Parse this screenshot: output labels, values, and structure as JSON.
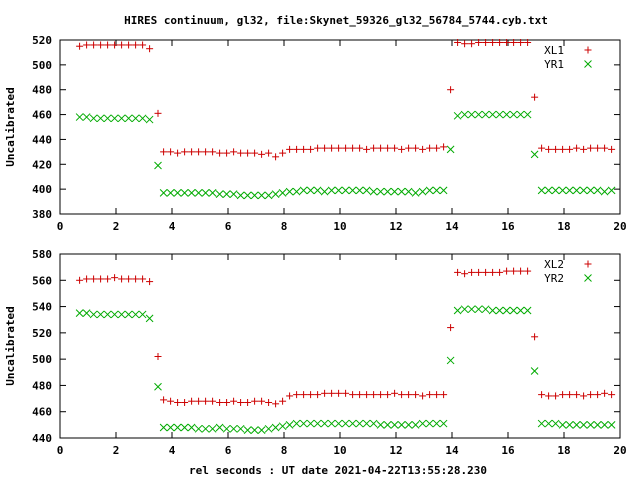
{
  "figure": {
    "title": "HIRES continuum, gl32, file:Skynet_59326_gl32_56784_5744.cyb.txt",
    "xlabel": "rel seconds : UT date 2021-04-22T13:55:28.230"
  },
  "chart_data": [
    {
      "type": "scatter",
      "title": "HIRES continuum, gl32, file:Skynet_59326_gl32_56784_5744.cyb.txt",
      "xlabel": "",
      "ylabel": "Uncalibrated",
      "xlim": [
        0,
        20
      ],
      "ylim": [
        380,
        520
      ],
      "xticks": [
        0,
        2,
        4,
        6,
        8,
        10,
        12,
        14,
        16,
        18,
        20
      ],
      "yticks": [
        380,
        400,
        420,
        440,
        460,
        480,
        500,
        520
      ],
      "grid": false,
      "legend": "top-right",
      "series": [
        {
          "name": "XL1",
          "marker": "plus",
          "color": "#cc0000",
          "x": [
            0.7,
            0.95,
            1.2,
            1.45,
            1.7,
            1.95,
            2.2,
            2.45,
            2.7,
            2.95,
            3.2,
            3.5,
            3.7,
            3.95,
            4.2,
            4.45,
            4.7,
            4.95,
            5.2,
            5.45,
            5.7,
            5.95,
            6.2,
            6.45,
            6.7,
            6.95,
            7.2,
            7.45,
            7.7,
            7.95,
            8.2,
            8.45,
            8.7,
            8.95,
            9.2,
            9.45,
            9.7,
            9.95,
            10.2,
            10.45,
            10.7,
            10.95,
            11.2,
            11.45,
            11.7,
            11.95,
            12.2,
            12.45,
            12.7,
            12.95,
            13.2,
            13.45,
            13.7,
            13.95,
            14.2,
            14.45,
            14.7,
            14.95,
            15.2,
            15.45,
            15.7,
            15.95,
            16.2,
            16.45,
            16.7,
            16.95,
            17.2,
            17.45,
            17.7,
            17.95,
            18.2,
            18.45,
            18.7,
            18.95,
            19.2,
            19.45,
            19.7
          ],
          "y": [
            515,
            516,
            516,
            516,
            516,
            516,
            516,
            516,
            516,
            516,
            513,
            461,
            430,
            430,
            429,
            430,
            430,
            430,
            430,
            430,
            429,
            429,
            430,
            429,
            429,
            429,
            428,
            429,
            426,
            429,
            432,
            432,
            432,
            432,
            433,
            433,
            433,
            433,
            433,
            433,
            433,
            432,
            433,
            433,
            433,
            433,
            432,
            433,
            433,
            432,
            433,
            433,
            434,
            480,
            518,
            517,
            517,
            518,
            518,
            518,
            518,
            518,
            518,
            518,
            518,
            474,
            433,
            432,
            432,
            432,
            432,
            433,
            432,
            433,
            433,
            433,
            432
          ]
        },
        {
          "name": "YR1",
          "marker": "cross",
          "color": "#00aa00",
          "x": [
            0.7,
            0.95,
            1.2,
            1.45,
            1.7,
            1.95,
            2.2,
            2.45,
            2.7,
            2.95,
            3.2,
            3.5,
            3.7,
            3.95,
            4.2,
            4.45,
            4.7,
            4.95,
            5.2,
            5.45,
            5.7,
            5.95,
            6.2,
            6.45,
            6.7,
            6.95,
            7.2,
            7.45,
            7.7,
            7.95,
            8.2,
            8.45,
            8.7,
            8.95,
            9.2,
            9.45,
            9.7,
            9.95,
            10.2,
            10.45,
            10.7,
            10.95,
            11.2,
            11.45,
            11.7,
            11.95,
            12.2,
            12.45,
            12.7,
            12.95,
            13.2,
            13.45,
            13.7,
            13.95,
            14.2,
            14.45,
            14.7,
            14.95,
            15.2,
            15.45,
            15.7,
            15.95,
            16.2,
            16.45,
            16.7,
            16.95,
            17.2,
            17.45,
            17.7,
            17.95,
            18.2,
            18.45,
            18.7,
            18.95,
            19.2,
            19.45,
            19.7
          ],
          "y": [
            458,
            458,
            457,
            457,
            457,
            457,
            457,
            457,
            457,
            457,
            456,
            419,
            397,
            397,
            397,
            397,
            397,
            397,
            397,
            397,
            396,
            396,
            396,
            395,
            395,
            395,
            395,
            395,
            396,
            397,
            398,
            398,
            399,
            399,
            399,
            398,
            399,
            399,
            399,
            399,
            399,
            399,
            398,
            398,
            398,
            398,
            398,
            398,
            397,
            398,
            399,
            399,
            399,
            432,
            459,
            460,
            460,
            460,
            460,
            460,
            460,
            460,
            460,
            460,
            460,
            428,
            399,
            399,
            399,
            399,
            399,
            399,
            399,
            399,
            399,
            398,
            399
          ]
        }
      ]
    },
    {
      "type": "scatter",
      "title": "",
      "xlabel": "rel seconds : UT date 2021-04-22T13:55:28.230",
      "ylabel": "Uncalibrated",
      "xlim": [
        0,
        20
      ],
      "ylim": [
        440,
        580
      ],
      "xticks": [
        0,
        2,
        4,
        6,
        8,
        10,
        12,
        14,
        16,
        18,
        20
      ],
      "yticks": [
        440,
        460,
        480,
        500,
        520,
        540,
        560,
        580
      ],
      "grid": false,
      "legend": "top-right",
      "series": [
        {
          "name": "XL2",
          "marker": "plus",
          "color": "#cc0000",
          "x": [
            0.7,
            0.95,
            1.2,
            1.45,
            1.7,
            1.95,
            2.2,
            2.45,
            2.7,
            2.95,
            3.2,
            3.5,
            3.7,
            3.95,
            4.2,
            4.45,
            4.7,
            4.95,
            5.2,
            5.45,
            5.7,
            5.95,
            6.2,
            6.45,
            6.7,
            6.95,
            7.2,
            7.45,
            7.7,
            7.95,
            8.2,
            8.45,
            8.7,
            8.95,
            9.2,
            9.45,
            9.7,
            9.95,
            10.2,
            10.45,
            10.7,
            10.95,
            11.2,
            11.45,
            11.7,
            11.95,
            12.2,
            12.45,
            12.7,
            12.95,
            13.2,
            13.45,
            13.7,
            13.95,
            14.2,
            14.45,
            14.7,
            14.95,
            15.2,
            15.45,
            15.7,
            15.95,
            16.2,
            16.45,
            16.7,
            16.95,
            17.2,
            17.45,
            17.7,
            17.95,
            18.2,
            18.45,
            18.7,
            18.95,
            19.2,
            19.45,
            19.7
          ],
          "y": [
            560,
            561,
            561,
            561,
            561,
            562,
            561,
            561,
            561,
            561,
            559,
            502,
            469,
            468,
            467,
            467,
            468,
            468,
            468,
            468,
            467,
            467,
            468,
            467,
            467,
            468,
            468,
            467,
            466,
            468,
            472,
            473,
            473,
            473,
            473,
            474,
            474,
            474,
            474,
            473,
            473,
            473,
            473,
            473,
            473,
            474,
            473,
            473,
            473,
            472,
            473,
            473,
            473,
            524,
            566,
            565,
            566,
            566,
            566,
            566,
            566,
            567,
            567,
            567,
            567,
            517,
            473,
            472,
            472,
            473,
            473,
            473,
            472,
            473,
            473,
            474,
            473
          ]
        },
        {
          "name": "YR2",
          "marker": "cross",
          "color": "#00aa00",
          "x": [
            0.7,
            0.95,
            1.2,
            1.45,
            1.7,
            1.95,
            2.2,
            2.45,
            2.7,
            2.95,
            3.2,
            3.5,
            3.7,
            3.95,
            4.2,
            4.45,
            4.7,
            4.95,
            5.2,
            5.45,
            5.7,
            5.95,
            6.2,
            6.45,
            6.7,
            6.95,
            7.2,
            7.45,
            7.7,
            7.95,
            8.2,
            8.45,
            8.7,
            8.95,
            9.2,
            9.45,
            9.7,
            9.95,
            10.2,
            10.45,
            10.7,
            10.95,
            11.2,
            11.45,
            11.7,
            11.95,
            12.2,
            12.45,
            12.7,
            12.95,
            13.2,
            13.45,
            13.7,
            13.95,
            14.2,
            14.45,
            14.7,
            14.95,
            15.2,
            15.45,
            15.7,
            15.95,
            16.2,
            16.45,
            16.7,
            16.95,
            17.2,
            17.45,
            17.7,
            17.95,
            18.2,
            18.45,
            18.7,
            18.95,
            19.2,
            19.45,
            19.7
          ],
          "y": [
            535,
            535,
            534,
            534,
            534,
            534,
            534,
            534,
            534,
            534,
            531,
            479,
            448,
            448,
            448,
            448,
            448,
            447,
            447,
            447,
            448,
            447,
            447,
            447,
            446,
            446,
            446,
            447,
            448,
            449,
            450,
            451,
            451,
            451,
            451,
            451,
            451,
            451,
            451,
            451,
            451,
            451,
            451,
            450,
            450,
            450,
            450,
            450,
            450,
            451,
            451,
            451,
            451,
            499,
            537,
            538,
            538,
            538,
            538,
            537,
            537,
            537,
            537,
            537,
            537,
            491,
            451,
            451,
            451,
            450,
            450,
            450,
            450,
            450,
            450,
            450,
            450
          ]
        }
      ]
    }
  ]
}
